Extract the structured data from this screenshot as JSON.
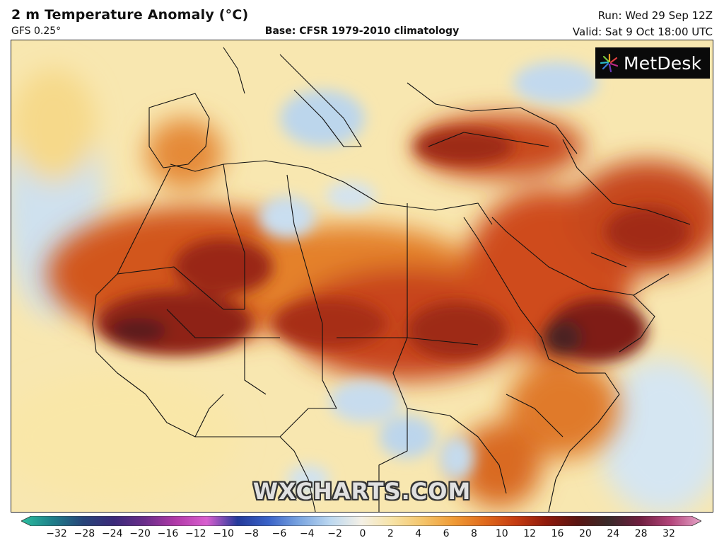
{
  "header": {
    "title": "2 m Temperature Anomaly (°C)",
    "model": "GFS 0.25°",
    "base": "Base: CFSR 1979-2010 climatology",
    "run": "Run: Wed 29 Sep 12Z",
    "valid": "Valid: Sat 9 Oct 18:00 UTC"
  },
  "logo": {
    "text": "MetDesk",
    "icon": "metdesk-star-icon"
  },
  "watermark": "WXCHARTS.COM",
  "colorbar": {
    "ticks": [
      "−32",
      "−28",
      "−24",
      "−20",
      "−16",
      "−12",
      "−10",
      "−8",
      "−6",
      "−4",
      "−2",
      "0",
      "2",
      "4",
      "6",
      "8",
      "10",
      "12",
      "16",
      "20",
      "24",
      "28",
      "32"
    ],
    "colors": [
      "#2bbf9f",
      "#1f7f8a",
      "#27457a",
      "#3b2a7a",
      "#6a2d8a",
      "#b13aa8",
      "#d95fcf",
      "#243a9a",
      "#3a63c8",
      "#7aa5e0",
      "#bcd8f0",
      "#f4f0e6",
      "#f7e3a6",
      "#f4c46a",
      "#ef9a35",
      "#e06a1c",
      "#c53c12",
      "#8f1a0c",
      "#5a1512",
      "#3a2a2a",
      "#6e1e3e",
      "#b3447a",
      "#e6a4c8"
    ]
  }
}
